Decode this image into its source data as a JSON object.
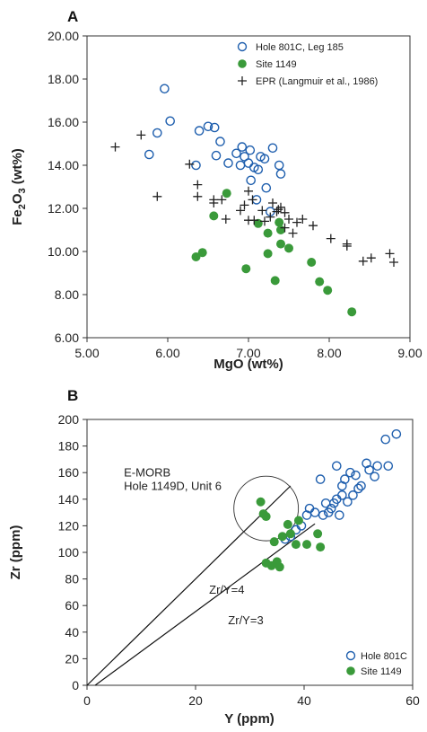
{
  "colors": {
    "hole_801c": "#1f5fae",
    "site_1149": "#3a9a3a",
    "epr": "#222222",
    "axis": "#333333"
  },
  "chart_data": [
    {
      "panel": "A",
      "type": "scatter",
      "xlabel": "MgO (wt%)",
      "ylabel_parts": [
        "Fe",
        "2",
        "O",
        "3",
        " (wt%)"
      ],
      "xlim": [
        5.0,
        9.0
      ],
      "ylim": [
        6.0,
        20.0
      ],
      "x_ticks": [
        "5.00",
        "6.00",
        "7.00",
        "8.00",
        "9.00"
      ],
      "x_tick_values": [
        5,
        6,
        7,
        8,
        9
      ],
      "y_ticks": [
        "6.00",
        "8.00",
        "10.00",
        "12.00",
        "14.00",
        "16.00",
        "18.00",
        "20.00"
      ],
      "y_tick_values": [
        6,
        8,
        10,
        12,
        14,
        16,
        18,
        20
      ],
      "legend": "top-right",
      "series": [
        {
          "name": "Hole 801C, Leg 185",
          "marker": "open-circle",
          "points": [
            [
              5.96,
              17.55
            ],
            [
              6.03,
              16.05
            ],
            [
              5.87,
              15.5
            ],
            [
              5.77,
              14.5
            ],
            [
              6.39,
              15.6
            ],
            [
              6.5,
              15.8
            ],
            [
              6.58,
              15.75
            ],
            [
              6.35,
              14.0
            ],
            [
              6.6,
              14.45
            ],
            [
              6.65,
              15.1
            ],
            [
              6.75,
              14.1
            ],
            [
              6.85,
              14.55
            ],
            [
              6.92,
              14.85
            ],
            [
              6.95,
              14.4
            ],
            [
              6.9,
              14.0
            ],
            [
              7.02,
              14.7
            ],
            [
              7.0,
              14.1
            ],
            [
              7.07,
              13.9
            ],
            [
              7.15,
              14.4
            ],
            [
              7.2,
              14.3
            ],
            [
              7.12,
              13.8
            ],
            [
              7.3,
              14.8
            ],
            [
              7.38,
              14.0
            ],
            [
              7.4,
              13.6
            ],
            [
              7.03,
              13.3
            ],
            [
              7.1,
              12.4
            ],
            [
              7.22,
              12.95
            ],
            [
              7.27,
              11.85
            ]
          ]
        },
        {
          "name": "Site 1149",
          "marker": "filled-circle",
          "points": [
            [
              6.73,
              12.7
            ],
            [
              6.57,
              11.65
            ],
            [
              6.35,
              9.75
            ],
            [
              6.43,
              9.95
            ],
            [
              6.97,
              9.2
            ],
            [
              7.12,
              11.3
            ],
            [
              7.24,
              10.85
            ],
            [
              7.24,
              9.9
            ],
            [
              7.33,
              8.65
            ],
            [
              7.38,
              11.35
            ],
            [
              7.4,
              10.35
            ],
            [
              7.4,
              11.0
            ],
            [
              7.5,
              10.15
            ],
            [
              7.78,
              9.5
            ],
            [
              7.88,
              8.6
            ],
            [
              7.98,
              8.2
            ],
            [
              8.28,
              7.2
            ]
          ]
        },
        {
          "name": "EPR (Langmuir et al., 1986)",
          "marker": "plus",
          "points": [
            [
              5.35,
              14.85
            ],
            [
              5.67,
              15.4
            ],
            [
              5.87,
              12.55
            ],
            [
              6.27,
              14.05
            ],
            [
              6.37,
              13.1
            ],
            [
              6.37,
              12.55
            ],
            [
              6.57,
              12.25
            ],
            [
              6.57,
              12.4
            ],
            [
              6.67,
              12.4
            ],
            [
              6.72,
              11.5
            ],
            [
              6.9,
              11.9
            ],
            [
              6.95,
              12.15
            ],
            [
              7.0,
              11.45
            ],
            [
              7.0,
              12.8
            ],
            [
              7.05,
              12.4
            ],
            [
              7.07,
              11.45
            ],
            [
              7.17,
              11.9
            ],
            [
              7.2,
              11.4
            ],
            [
              7.27,
              11.6
            ],
            [
              7.3,
              12.25
            ],
            [
              7.35,
              11.85
            ],
            [
              7.37,
              11.95
            ],
            [
              7.4,
              12.05
            ],
            [
              7.45,
              11.8
            ],
            [
              7.45,
              11.1
            ],
            [
              7.5,
              11.5
            ],
            [
              7.55,
              10.85
            ],
            [
              7.6,
              11.35
            ],
            [
              7.67,
              11.5
            ],
            [
              7.8,
              11.2
            ],
            [
              8.02,
              10.6
            ],
            [
              8.22,
              10.35
            ],
            [
              8.22,
              10.25
            ],
            [
              8.42,
              9.55
            ],
            [
              8.52,
              9.7
            ],
            [
              8.75,
              9.9
            ],
            [
              8.8,
              9.5
            ]
          ]
        }
      ]
    },
    {
      "panel": "B",
      "type": "scatter",
      "xlabel": "Y (ppm)",
      "ylabel": "Zr (ppm)",
      "xlim": [
        0,
        60
      ],
      "ylim": [
        0,
        200
      ],
      "x_ticks": [
        "0",
        "20",
        "40",
        "60"
      ],
      "x_tick_values": [
        0,
        20,
        40,
        60
      ],
      "y_ticks": [
        "0",
        "20",
        "40",
        "60",
        "80",
        "100",
        "120",
        "140",
        "160",
        "180",
        "200"
      ],
      "y_tick_values": [
        0,
        20,
        40,
        60,
        80,
        100,
        120,
        140,
        160,
        180,
        200
      ],
      "legend": "bottom-right",
      "reference_lines": [
        {
          "label": "Zr/Y=4",
          "from": [
            0,
            0
          ],
          "to": [
            37.5,
            150
          ],
          "label_at": [
            22.5,
            69
          ]
        },
        {
          "label": "Zr/Y=3",
          "from": [
            1.5,
            0
          ],
          "to": [
            42,
            121.5
          ],
          "label_at": [
            26,
            46
          ]
        }
      ],
      "annotation": {
        "lines": [
          "E-MORB",
          "Hole 1149D, Unit 6"
        ],
        "anchor": [
          6.8,
          147
        ],
        "circle_center": [
          33,
          133
        ],
        "circle_radius": 10
      },
      "series": [
        {
          "name": "Hole 801C",
          "marker": "open-circle",
          "points": [
            [
              36.5,
              110
            ],
            [
              37.5,
              112
            ],
            [
              38.5,
              117
            ],
            [
              39.5,
              120
            ],
            [
              40.5,
              128
            ],
            [
              41,
              133
            ],
            [
              42,
              130
            ],
            [
              43,
              155
            ],
            [
              43.5,
              128
            ],
            [
              44,
              137
            ],
            [
              45,
              133
            ],
            [
              46,
              140
            ],
            [
              46.5,
              128
            ],
            [
              46,
              165
            ],
            [
              47,
              143
            ],
            [
              47.5,
              155
            ],
            [
              48,
              138
            ],
            [
              48.5,
              160
            ],
            [
              49,
              143
            ],
            [
              49.5,
              158
            ],
            [
              50,
              148
            ],
            [
              50.5,
              150
            ],
            [
              51.5,
              167
            ],
            [
              52,
              162
            ],
            [
              53,
              157
            ],
            [
              53.5,
              165
            ],
            [
              55,
              185
            ],
            [
              55.5,
              165
            ],
            [
              57,
              189
            ],
            [
              44.5,
              130
            ],
            [
              45.5,
              137
            ],
            [
              47,
              150
            ]
          ]
        },
        {
          "name": "Site 1149",
          "marker": "filled-circle",
          "points": [
            [
              32,
              138
            ],
            [
              32.5,
              129
            ],
            [
              33,
              127
            ],
            [
              33,
              92
            ],
            [
              34,
              90
            ],
            [
              34.5,
              108
            ],
            [
              35,
              93
            ],
            [
              35.5,
              89
            ],
            [
              36,
              112
            ],
            [
              37,
              121
            ],
            [
              37.5,
              114
            ],
            [
              38.5,
              106
            ],
            [
              39,
              124
            ],
            [
              40.5,
              106
            ],
            [
              42.5,
              114
            ],
            [
              43,
              104
            ]
          ]
        }
      ]
    }
  ]
}
